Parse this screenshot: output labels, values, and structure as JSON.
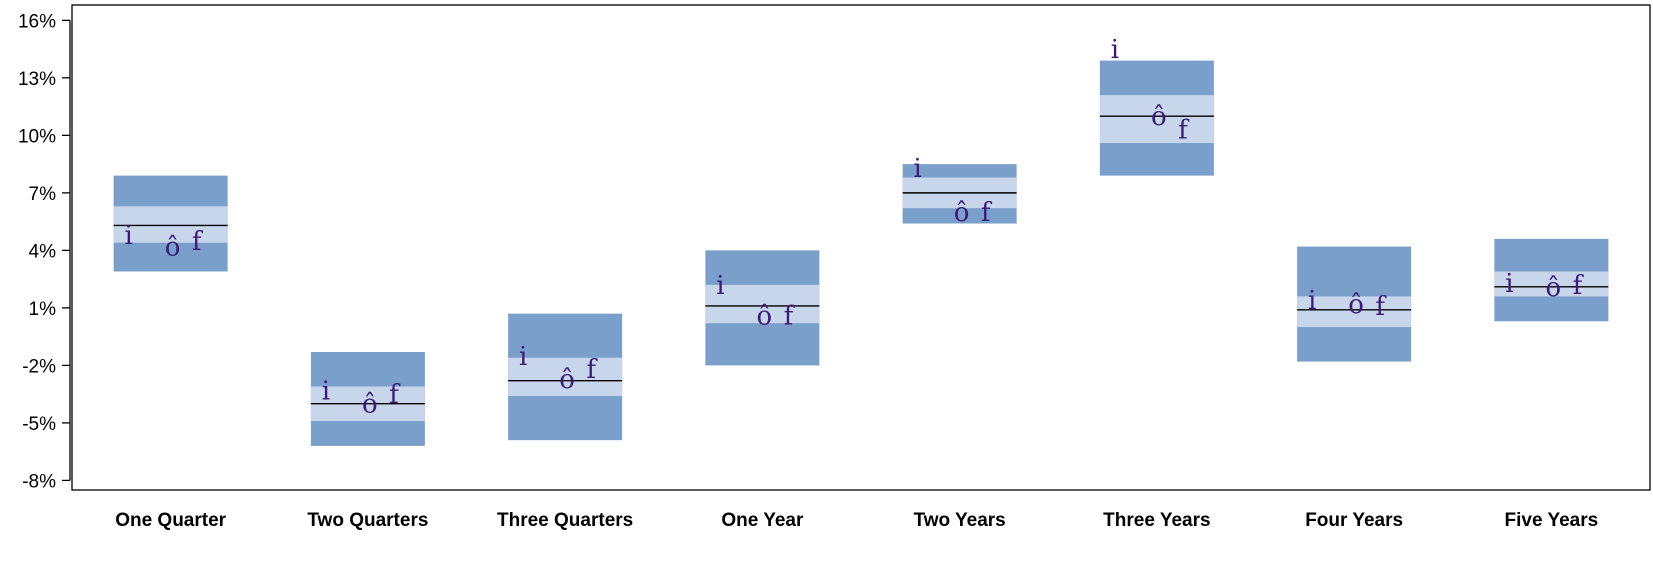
{
  "chart_data": {
    "type": "box",
    "ylim": [
      -8.5,
      16.8
    ],
    "y_ticks": [
      -8,
      -5,
      -2,
      1,
      4,
      7,
      10,
      13,
      16
    ],
    "y_tick_labels": [
      "-8%",
      "-5%",
      "-2%",
      "1%",
      "4%",
      "7%",
      "10%",
      "13%",
      "16%"
    ],
    "grid": false,
    "legend": "none",
    "colors": {
      "outer": "#7a9fcb",
      "inner": "#c7d6ea",
      "median": "#000000",
      "marker": "#3d1a78",
      "frame": "#000000"
    },
    "marker_symbols": {
      "i": "i",
      "o": "ô",
      "f": "f"
    },
    "categories": [
      "One Quarter",
      "Two Quarters",
      "Three Quarters",
      "One Year",
      "Two Years",
      "Three Years",
      "Four Years",
      "Five Years"
    ],
    "boxes": [
      {
        "outer_low": 2.9,
        "inner_low": 4.4,
        "median": 5.3,
        "inner_high": 6.3,
        "outer_high": 7.9,
        "i": 4.8,
        "o": 4.2,
        "f": 4.5
      },
      {
        "outer_low": -6.2,
        "inner_low": -4.9,
        "median": -4.0,
        "inner_high": -3.1,
        "outer_high": -1.3,
        "i": -3.3,
        "o": -4.0,
        "f": -3.5
      },
      {
        "outer_low": -5.9,
        "inner_low": -3.6,
        "median": -2.8,
        "inner_high": -1.6,
        "outer_high": 0.7,
        "i": -1.5,
        "o": -2.7,
        "f": -2.2
      },
      {
        "outer_low": -2.0,
        "inner_low": 0.2,
        "median": 1.1,
        "inner_high": 2.2,
        "outer_high": 4.0,
        "i": 2.2,
        "o": 0.6,
        "f": 0.6
      },
      {
        "outer_low": 5.4,
        "inner_low": 6.2,
        "median": 7.0,
        "inner_high": 7.8,
        "outer_high": 8.5,
        "i": 8.3,
        "o": 6.0,
        "f": 6.0
      },
      {
        "outer_low": 7.9,
        "inner_low": 9.6,
        "median": 11.0,
        "inner_high": 12.1,
        "outer_high": 13.9,
        "i": 14.5,
        "o": 11.0,
        "f": 10.3
      },
      {
        "outer_low": -1.8,
        "inner_low": 0.0,
        "median": 0.9,
        "inner_high": 1.6,
        "outer_high": 4.2,
        "i": 1.4,
        "o": 1.2,
        "f": 1.1
      },
      {
        "outer_low": 0.3,
        "inner_low": 1.6,
        "median": 2.1,
        "inner_high": 2.9,
        "outer_high": 4.6,
        "i": 2.3,
        "o": 2.1,
        "f": 2.2
      }
    ]
  }
}
